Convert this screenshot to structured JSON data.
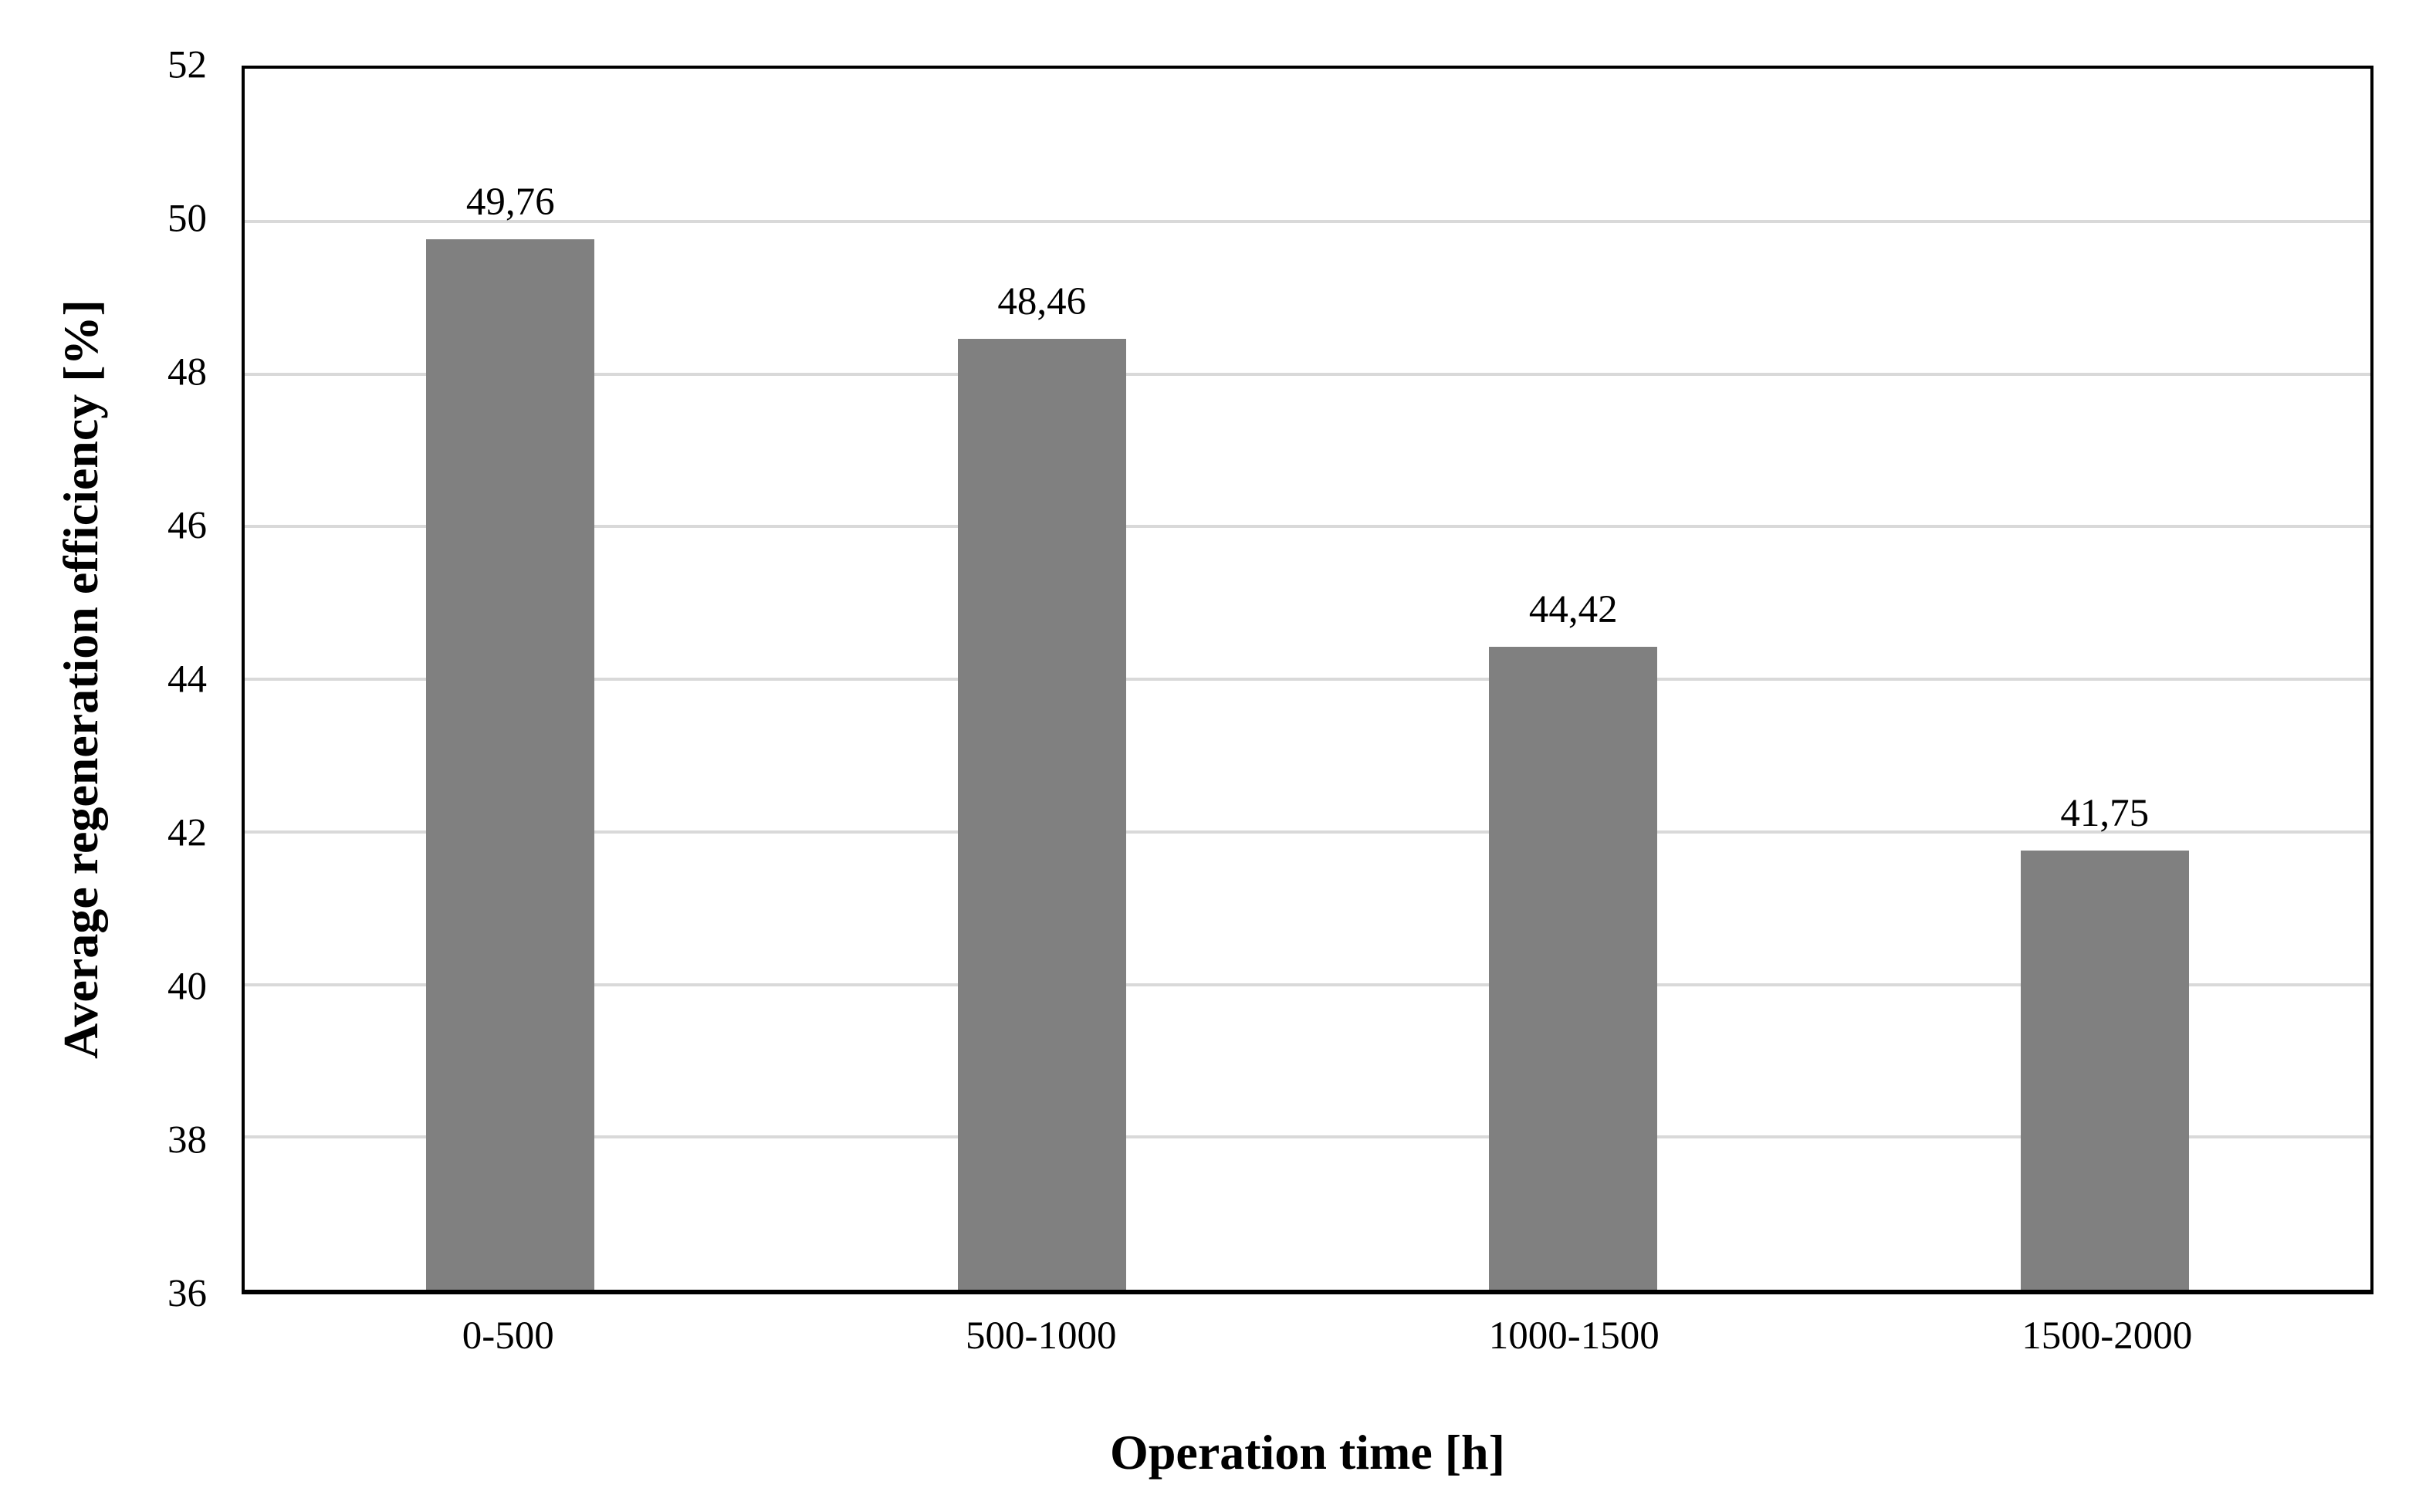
{
  "chart_data": {
    "type": "bar",
    "categories": [
      "0-500",
      "500-1000",
      "1000-1500",
      "1500-2000"
    ],
    "values": [
      49.76,
      48.46,
      44.42,
      41.75
    ],
    "value_labels": [
      "49,76",
      "48,46",
      "44,42",
      "41,75"
    ],
    "xlabel": "Operation time [h]",
    "ylabel": "Average regeneration efficiency [%]",
    "ylim": [
      36,
      52
    ],
    "yticks": [
      52,
      50,
      48,
      46,
      44,
      42,
      40,
      38,
      36
    ],
    "ytick_step": 2,
    "grid": "horizontal",
    "legend_position": "none",
    "decimal_separator": ",",
    "colors": {
      "bar": "#808080",
      "gridline": "#d9d9d9",
      "axis": "#000000",
      "background": "#ffffff",
      "text": "#000000"
    }
  }
}
